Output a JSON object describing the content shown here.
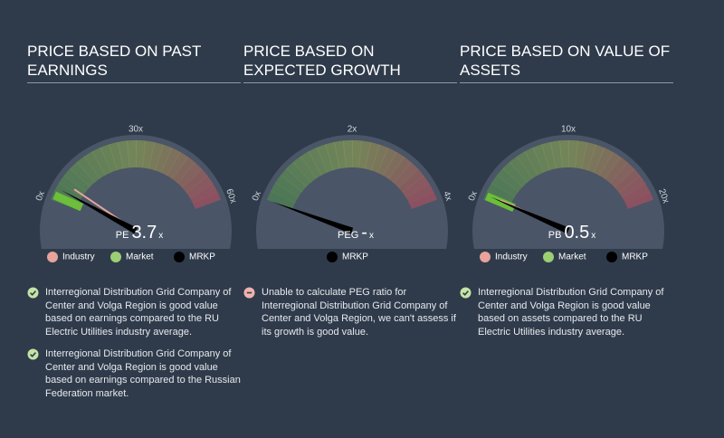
{
  "panels": [
    {
      "title": "PRICE BASED ON PAST EARNINGS",
      "gauge": {
        "ticks": [
          {
            "value": 0,
            "label": "0x"
          },
          {
            "value": 30,
            "label": "30x"
          },
          {
            "value": 60,
            "label": "60x"
          }
        ],
        "metric": "PE",
        "value": 3.7,
        "unit": "x",
        "industry": 6,
        "market": 1.5
      },
      "legend": [
        {
          "name": "Industry",
          "color": "#e8a39c"
        },
        {
          "name": "Market",
          "color": "#9ccf73"
        },
        {
          "name": "MRKP",
          "color": "#000000"
        }
      ],
      "notes": [
        {
          "status": "pass",
          "text": "Interregional Distribution Grid Company of Center and Volga Region is good value based on earnings compared to the RU Electric Utilities industry average."
        },
        {
          "status": "pass",
          "text": "Interregional Distribution Grid Company of Center and Volga Region is good value based on earnings compared to the Russian Federation market."
        }
      ]
    },
    {
      "title": "PRICE BASED ON EXPECTED GROWTH",
      "gauge": {
        "ticks": [
          {
            "value": 0,
            "label": "0x"
          },
          {
            "value": 2,
            "label": "2x"
          },
          {
            "value": 4,
            "label": "4x"
          }
        ],
        "metric": "PEG",
        "value": null,
        "value_label": "-",
        "unit": "x"
      },
      "legend": [
        {
          "name": "MRKP",
          "color": "#000000"
        }
      ],
      "notes": [
        {
          "status": "fail",
          "text": "Unable to calculate PEG ratio for Interregional Distribution Grid Company of Center and Volga Region, we can't assess if its growth is good value."
        }
      ]
    },
    {
      "title": "PRICE BASED ON VALUE OF ASSETS",
      "gauge": {
        "ticks": [
          {
            "value": 0,
            "label": "0x"
          },
          {
            "value": 10,
            "label": "10x"
          },
          {
            "value": 20,
            "label": "20x"
          }
        ],
        "metric": "PB",
        "value": 0.5,
        "unit": "x",
        "industry": 0.6,
        "market": 0.4
      },
      "legend": [
        {
          "name": "Industry",
          "color": "#e8a39c"
        },
        {
          "name": "Market",
          "color": "#9ccf73"
        },
        {
          "name": "MRKP",
          "color": "#000000"
        }
      ],
      "notes": [
        {
          "status": "pass",
          "text": "Interregional Distribution Grid Company of Center and Volga Region is good value based on assets compared to the RU Electric Utilities industry average."
        }
      ]
    }
  ]
}
